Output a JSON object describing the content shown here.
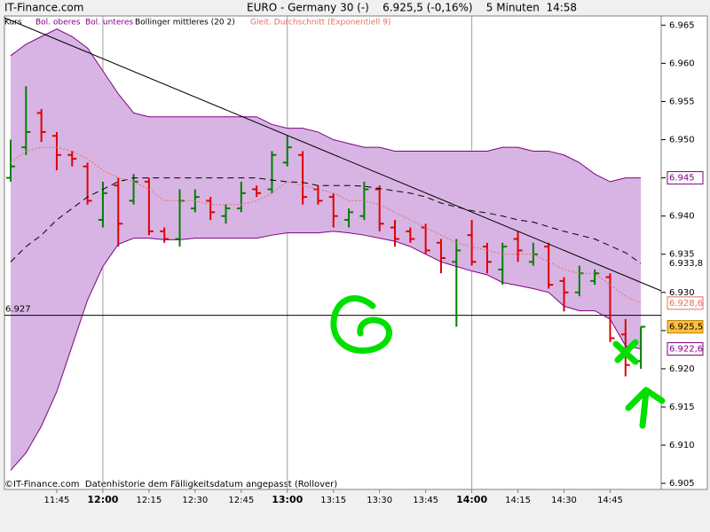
{
  "chart_data": {
    "type": "ohlc",
    "source": "IT-Finance.com",
    "title": "EURO - Germany 30 (-)    6.925,5 (-0,16%)    5 Minuten  14:58",
    "footer": "©IT-Finance.com  Datenhistorie dem Fälligkeitsdatum angepasst (Rollover)",
    "categories": [
      null,
      null,
      null,
      "11:45",
      null,
      null,
      "12:00",
      null,
      null,
      "12:15",
      null,
      null,
      "12:30",
      null,
      null,
      "12:45",
      null,
      null,
      "13:00",
      null,
      null,
      "13:15",
      null,
      null,
      "13:30",
      null,
      null,
      "13:45",
      null,
      null,
      "14:00",
      null,
      null,
      "14:15",
      null,
      null,
      "14:30",
      null,
      null,
      "14:45",
      null,
      null
    ],
    "ylim": [
      6.9042,
      6.9662
    ],
    "yticks": [
      6.905,
      {
        "value": 6.91,
        "label": "6.910"
      },
      6.915,
      {
        "value": 6.92,
        "label": "6.920"
      },
      6.925,
      {
        "value": 6.93,
        "label": "6.930"
      },
      6.935,
      {
        "value": 6.94,
        "label": "6.940"
      },
      6.945,
      {
        "value": 6.95,
        "label": "6.950"
      },
      6.955,
      {
        "value": 6.96,
        "label": "6.960"
      },
      6.965
    ],
    "hline": 6.927,
    "series": [
      {
        "name": "Kurs",
        "up_color": "#008000",
        "down_color": "#e00000",
        "end_label": "6.925,5",
        "open": [
          6.945,
          6.949,
          6.9535,
          6.9505,
          6.948,
          6.9465,
          6.9395,
          6.944,
          6.942,
          6.9445,
          6.938,
          6.937,
          6.941,
          6.942,
          6.94,
          6.941,
          6.9435,
          6.9435,
          6.947,
          6.948,
          6.9435,
          6.9425,
          6.9395,
          6.94,
          6.9435,
          6.9385,
          6.938,
          6.9385,
          6.9365,
          6.934,
          6.9375,
          6.936,
          6.933,
          6.937,
          6.934,
          6.936,
          6.9315,
          6.93,
          6.9315,
          6.932,
          6.9245,
          6.921
        ],
        "high": [
          6.95,
          6.957,
          6.954,
          6.951,
          6.9485,
          6.947,
          6.9445,
          6.945,
          6.9455,
          6.945,
          6.9385,
          6.9435,
          6.9435,
          6.9425,
          6.9415,
          6.9445,
          6.944,
          6.9485,
          6.9505,
          6.9485,
          6.944,
          6.943,
          6.941,
          6.9445,
          6.944,
          6.9395,
          6.9385,
          6.939,
          6.937,
          6.937,
          6.9395,
          6.9365,
          6.9365,
          6.938,
          6.9365,
          6.9365,
          6.932,
          6.9335,
          6.933,
          6.9325,
          6.9265,
          6.9255
        ],
        "low": [
          6.9445,
          6.948,
          6.9497,
          6.946,
          6.9465,
          6.9415,
          6.9385,
          6.936,
          6.9415,
          6.9375,
          6.9365,
          6.936,
          6.9405,
          6.9395,
          6.939,
          6.9405,
          6.9425,
          6.943,
          6.9465,
          6.9415,
          6.9415,
          6.9385,
          6.9385,
          6.9395,
          6.938,
          6.936,
          6.9365,
          6.935,
          6.9325,
          6.9255,
          6.9335,
          6.9325,
          6.931,
          6.934,
          6.9335,
          6.9305,
          6.9275,
          6.9295,
          6.931,
          6.9235,
          6.919,
          6.92
        ],
        "close": [
          6.9465,
          6.951,
          6.951,
          6.948,
          6.9475,
          6.942,
          6.943,
          6.939,
          6.9445,
          6.938,
          6.937,
          6.942,
          6.9425,
          6.9405,
          6.941,
          6.943,
          6.943,
          6.948,
          6.949,
          6.9425,
          6.942,
          6.94,
          6.9405,
          6.9435,
          6.939,
          6.937,
          6.937,
          6.9355,
          6.9345,
          6.9355,
          6.934,
          6.934,
          6.936,
          6.9355,
          6.935,
          6.931,
          6.93,
          6.9325,
          6.9325,
          6.924,
          6.9205,
          6.9255
        ]
      },
      {
        "name": "Bol. oberes",
        "color": "#800080",
        "end_label": "6.945",
        "values": [
          6.961,
          6.9625,
          6.9635,
          6.9645,
          6.9635,
          6.962,
          6.959,
          6.956,
          6.9535,
          6.953,
          6.953,
          6.953,
          6.953,
          6.953,
          6.953,
          6.953,
          6.953,
          6.952,
          6.9515,
          6.9515,
          6.951,
          6.95,
          6.9495,
          6.949,
          6.949,
          6.9485,
          6.9485,
          6.9485,
          6.9485,
          6.9485,
          6.9485,
          6.9485,
          6.949,
          6.949,
          6.9485,
          6.9485,
          6.948,
          6.947,
          6.9455,
          6.9445,
          6.945,
          6.945
        ]
      },
      {
        "name": "Bol. unteres",
        "color": "#800080",
        "end_label": "6.922,6",
        "values": [
          6.9067,
          6.909,
          6.9125,
          6.917,
          6.923,
          6.929,
          6.9334,
          6.9363,
          6.9371,
          6.9371,
          6.9369,
          6.9369,
          6.9371,
          6.9371,
          6.9371,
          6.9371,
          6.9371,
          6.9375,
          6.9378,
          6.9378,
          6.9378,
          6.938,
          6.9378,
          6.9375,
          6.9371,
          6.9367,
          6.936,
          6.935,
          6.934,
          6.9334,
          6.9328,
          6.9323,
          6.9313,
          6.9309,
          6.9305,
          6.93,
          6.9282,
          6.9276,
          6.9276,
          6.9265,
          6.923,
          6.9226
        ]
      },
      {
        "name": "Bollinger mittleres (20 2)",
        "color": "#000000",
        "dash": true,
        "end_label": "6.933,8",
        "values": [
          6.934,
          6.936,
          6.9375,
          6.9395,
          6.941,
          6.9425,
          6.9435,
          6.9445,
          6.945,
          6.945,
          6.945,
          6.945,
          6.945,
          6.945,
          6.945,
          6.945,
          6.945,
          6.9447,
          6.9445,
          6.9444,
          6.944,
          6.944,
          6.944,
          6.9439,
          6.9436,
          6.9433,
          6.943,
          6.9425,
          6.9417,
          6.9412,
          6.9407,
          6.9404,
          6.94,
          6.9395,
          6.9392,
          6.9386,
          6.938,
          6.9375,
          6.937,
          6.9361,
          6.9352,
          6.9338
        ]
      },
      {
        "name": "Gleit. Durchschnitt (Exponentiell 9)",
        "color": "#e07060",
        "dot": true,
        "end_label": "6.928,6",
        "values": [
          6.947,
          6.9485,
          6.949,
          6.949,
          6.9485,
          6.9475,
          6.946,
          6.945,
          6.9445,
          6.9435,
          6.942,
          6.942,
          6.942,
          6.9415,
          6.9415,
          6.9415,
          6.942,
          6.943,
          6.9445,
          6.944,
          6.9435,
          6.943,
          6.942,
          6.942,
          6.9415,
          6.9405,
          6.9395,
          6.9385,
          6.9375,
          6.9365,
          6.936,
          6.9355,
          6.935,
          6.935,
          6.935,
          6.934,
          6.933,
          6.9325,
          6.9325,
          6.931,
          6.9295,
          6.9286
        ]
      }
    ]
  }
}
